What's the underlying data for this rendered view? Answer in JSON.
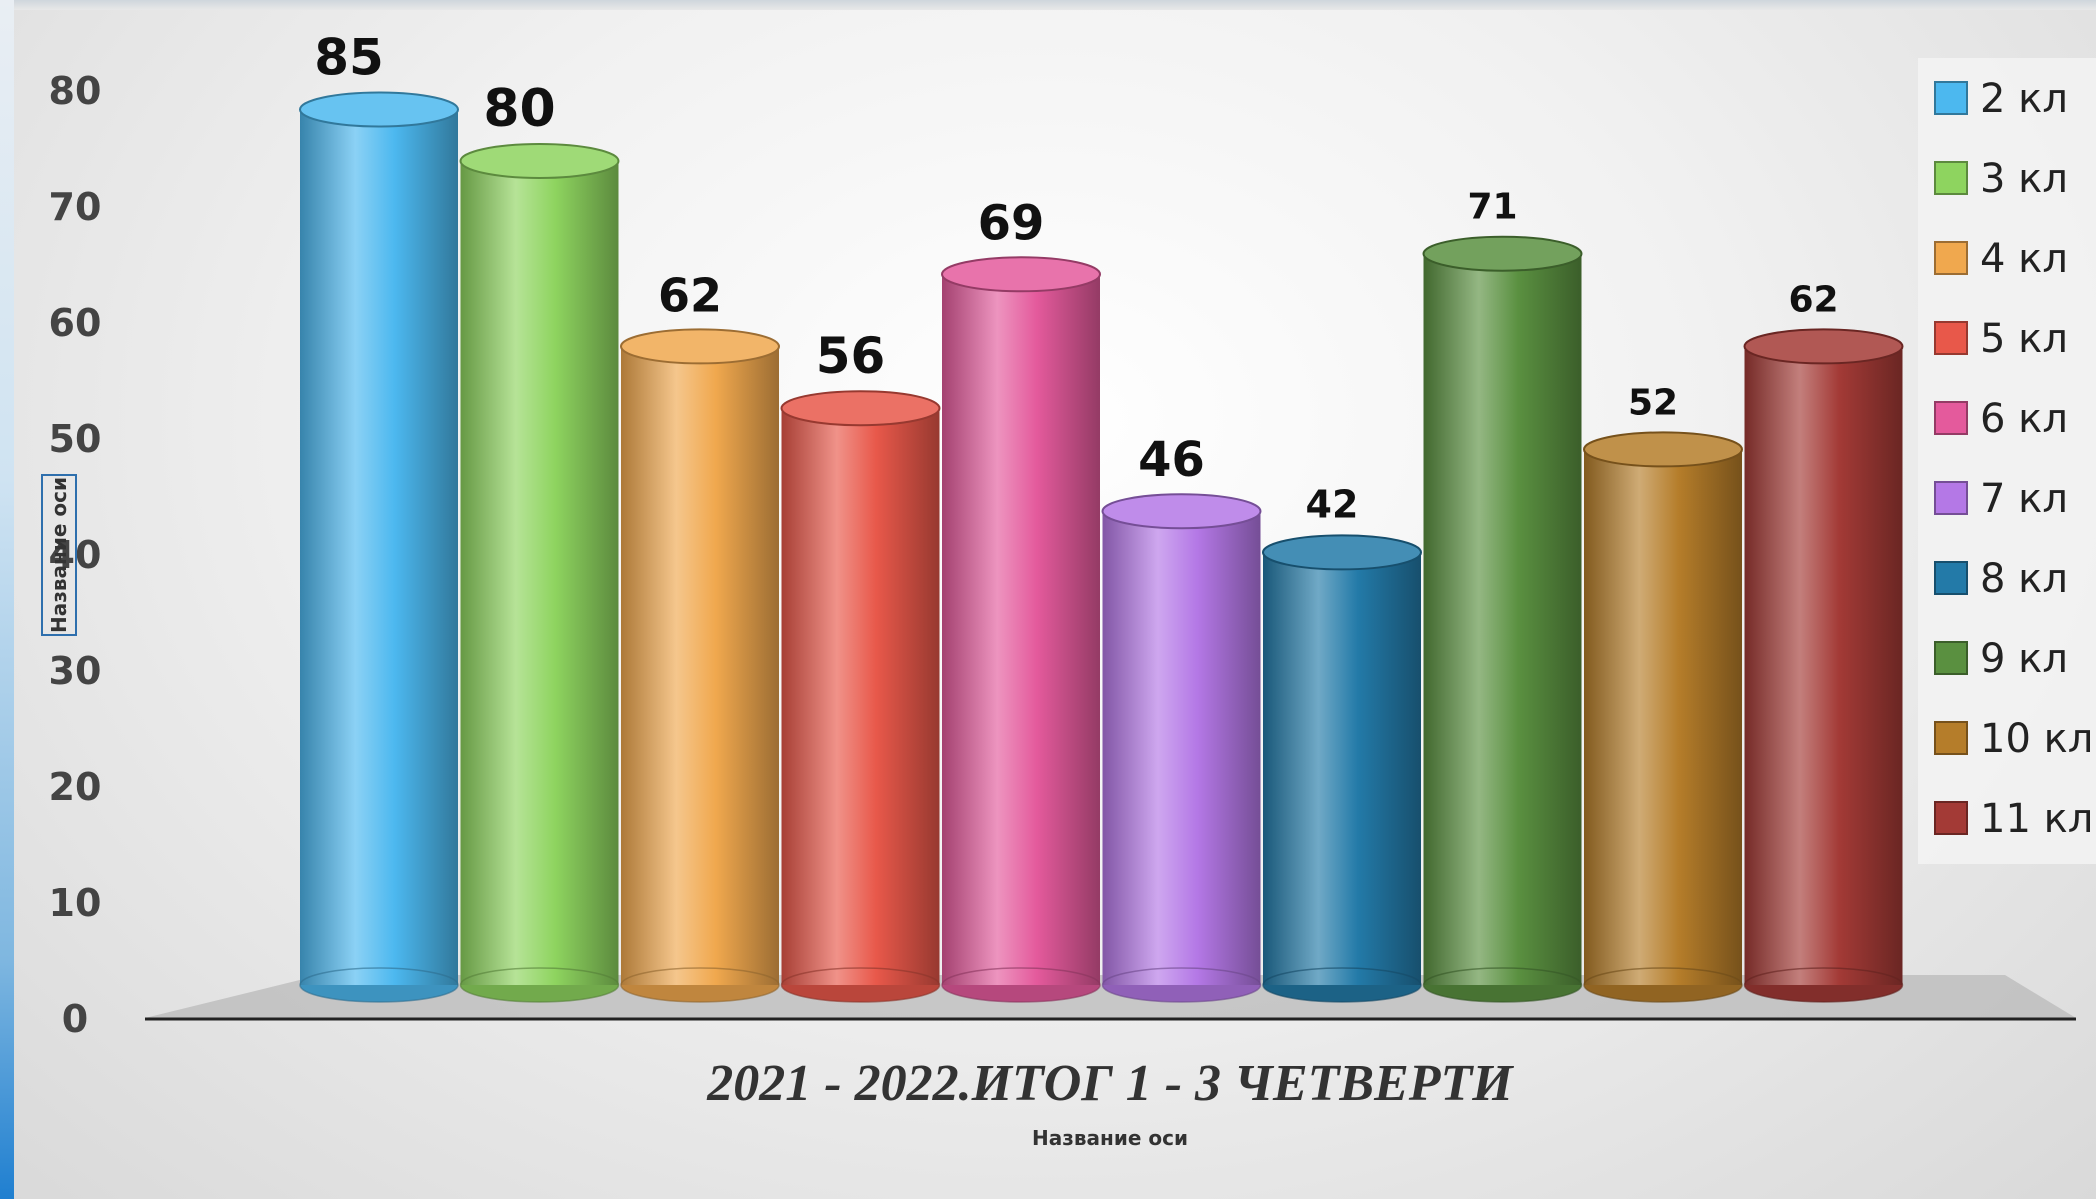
{
  "chart_data": {
    "type": "bar",
    "style": "3d-cylinder",
    "title": "2021 - 2022.ИТОГ 1 -  3 ЧЕТВЕРТИ",
    "xlabel": "Название оси",
    "ylabel": "Название оси",
    "ylim": [
      0,
      80
    ],
    "yticks": [
      "0",
      "10",
      "20",
      "30",
      "40",
      "50",
      "60",
      "70",
      "80"
    ],
    "grid": false,
    "legend_position": "right",
    "series": [
      {
        "name": "2 кл",
        "value": 85,
        "label": "85",
        "color": "#4cb8ef"
      },
      {
        "name": "3 кл",
        "value": 80,
        "label": "80",
        "color": "#8ed45f"
      },
      {
        "name": "4 кл",
        "value": 62,
        "label": "62",
        "color": "#f0a84e"
      },
      {
        "name": "5 кл",
        "value": 56,
        "label": "56",
        "color": "#e8584a"
      },
      {
        "name": "6 кл",
        "value": 69,
        "label": "69",
        "color": "#e45a9c"
      },
      {
        "name": "7 кл",
        "value": 46,
        "label": "46",
        "color": "#b478e6"
      },
      {
        "name": "8 кл",
        "value": 42,
        "label": "42",
        "color": "#237aa8"
      },
      {
        "name": "9 кл",
        "value": 71,
        "label": "71",
        "color": "#5a9040"
      },
      {
        "name": "10 кл",
        "value": 52,
        "label": "52",
        "color": "#b57d2a"
      },
      {
        "name": "11 кл",
        "value": 62,
        "label": "62",
        "color": "#a33a36"
      }
    ]
  }
}
